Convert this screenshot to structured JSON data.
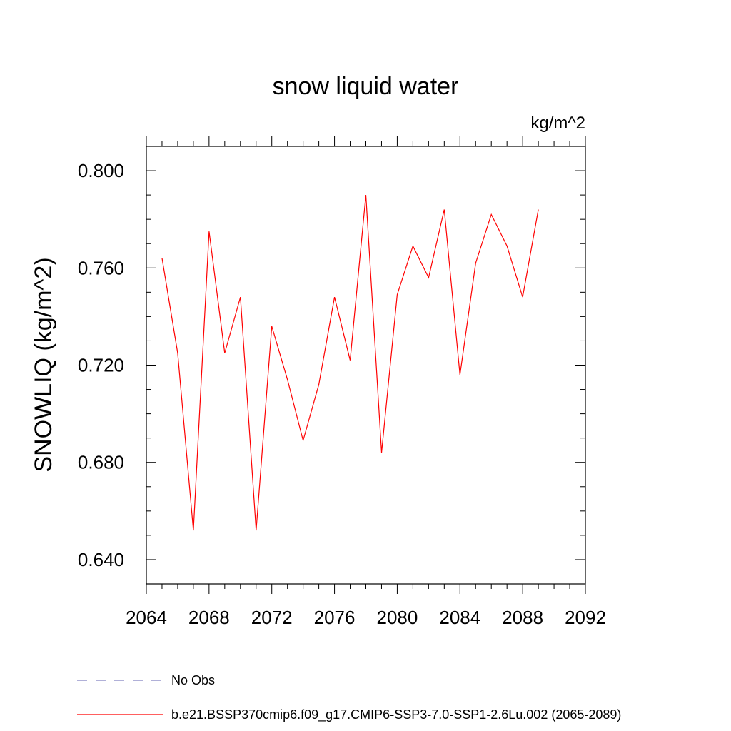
{
  "chart_data": {
    "type": "line",
    "title": "snow liquid water",
    "units_label": "kg/m^2",
    "ylabel": "SNOWLIQ  (kg/m^2)",
    "xlabel": "",
    "xlim": [
      2064,
      2092
    ],
    "ylim": [
      0.63,
      0.81
    ],
    "xticks": [
      2064,
      2068,
      2072,
      2076,
      2080,
      2084,
      2088,
      2092
    ],
    "yticks": [
      0.64,
      0.68,
      0.72,
      0.76,
      0.8
    ],
    "ytick_labels": [
      "0.640",
      "0.680",
      "0.720",
      "0.760",
      "0.800"
    ],
    "x_minor_step": 1,
    "y_minor_step": 0.01,
    "grid": false,
    "series": [
      {
        "name": "b.e21.BSSP370cmip6.f09_g17.CMIP6-SSP3-7.0-SSP1-2.6Lu.002 (2065-2089)",
        "color": "#ff0000",
        "style": "solid",
        "x": [
          2065,
          2066,
          2067,
          2068,
          2069,
          2070,
          2071,
          2072,
          2073,
          2074,
          2075,
          2076,
          2077,
          2078,
          2079,
          2080,
          2081,
          2082,
          2083,
          2084,
          2085,
          2086,
          2087,
          2088,
          2089
        ],
        "values": [
          0.764,
          0.725,
          0.652,
          0.775,
          0.725,
          0.748,
          0.652,
          0.736,
          0.714,
          0.689,
          0.712,
          0.748,
          0.722,
          0.79,
          0.684,
          0.749,
          0.769,
          0.756,
          0.784,
          0.716,
          0.762,
          0.782,
          0.769,
          0.748,
          0.784
        ]
      }
    ],
    "legend": [
      {
        "label": "No Obs",
        "color": "#8080c0",
        "style": "dashed"
      },
      {
        "label": "b.e21.BSSP370cmip6.f09_g17.CMIP6-SSP3-7.0-SSP1-2.6Lu.002 (2065-2089)",
        "color": "#ff0000",
        "style": "solid"
      }
    ]
  }
}
